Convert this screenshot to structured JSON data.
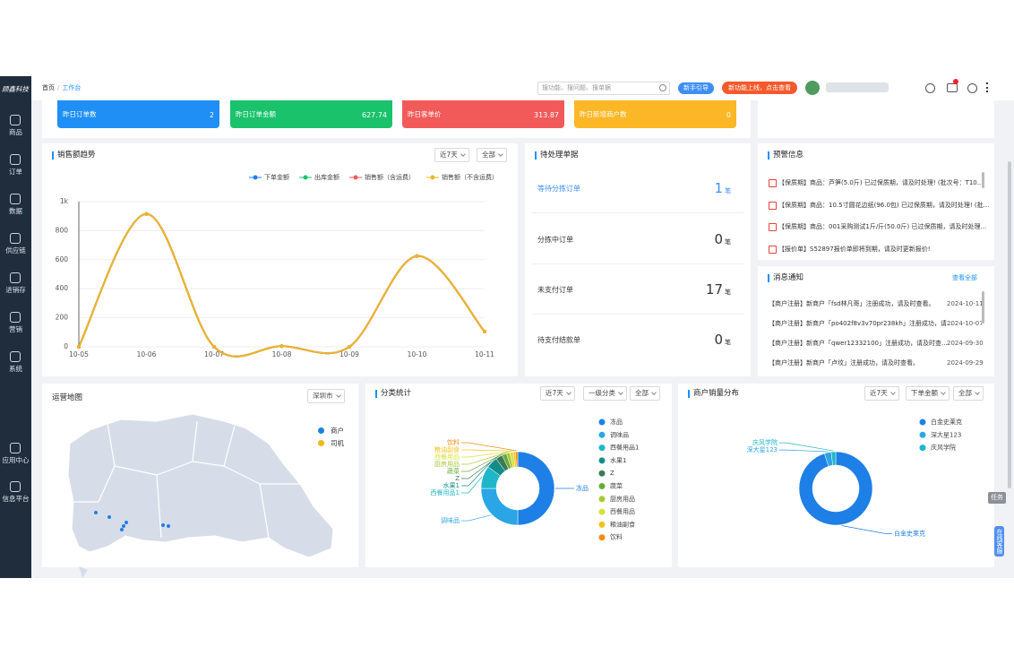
{
  "sidebar": {
    "logo": "顾鑫科技",
    "menu": [
      "商品",
      "订单",
      "数据",
      "供应链",
      "进销存",
      "营销",
      "系统"
    ],
    "bottom_menu": [
      "应用中心",
      "信息平台"
    ]
  },
  "header": {
    "breadcrumb": [
      "首页",
      "工作台"
    ],
    "search_placeholder": "搜功能、搜问题、搜单据",
    "guide_button": "新手引导",
    "new_feature": "新功能上线，点击查看"
  },
  "stat_cards": [
    {
      "label": "昨日订单数",
      "value": 2
    },
    {
      "label": "昨日订单金额",
      "value": 627.74
    },
    {
      "label": "昨日客单价",
      "value": 313.87
    },
    {
      "label": "昨日新增商户数",
      "value": 0
    }
  ],
  "pending": {
    "title": "待处理单据",
    "unit": "笔",
    "rows": [
      {
        "label": "等待分拣订单",
        "count": 1
      },
      {
        "label": "分拣中订单",
        "count": 0
      },
      {
        "label": "未支付订单",
        "count": 17
      },
      {
        "label": "待支付结款单",
        "count": 0
      }
    ]
  },
  "warnings": {
    "title": "预警信息",
    "items": [
      "【保质期】商品：芦笋(5.0斤) 已过保质期，请及时处理! (批次号：T10...",
      "【保质期】商品：10.5寸圆花边纸(96.0包) 已过保质期，请及时处理! (批...",
      "【保质期】商品：001采购测试1斤/斤(50.0斤) 已过保质期，请及时处理...",
      "【报价单】S52897报价单即将到期，请及时更新报价!"
    ]
  },
  "messages": {
    "title": "消息通知",
    "view_all": "查看全部",
    "items": [
      {
        "text": "【商户注册】新商户「fsd林凡哥」注册成功，请及时查看。",
        "date": "2024-10-11"
      },
      {
        "text": "【商户注册】新商户「po402f8v3v70pr238kh」注册成功，请...",
        "date": "2024-10-07"
      },
      {
        "text": "【商户注册】新商户「qwer12332100」注册成功，请及时查...",
        "date": "2024-09-30"
      },
      {
        "text": "【商户注册】新商户「卢坟」注册成功，请及时查看。",
        "date": "2024-09-29"
      }
    ]
  },
  "map": {
    "title": "运营地图",
    "city": "深圳市",
    "legend": [
      {
        "name": "商户",
        "color": "#1e7fe6"
      },
      {
        "name": "司机",
        "color": "#f0b90b"
      }
    ]
  },
  "float": {
    "task": "任务",
    "service": "在线客服"
  },
  "chart_data": [
    {
      "type": "line",
      "title": "销售额趋势",
      "filters": [
        "近7天",
        "全部"
      ],
      "categories": [
        "10-05",
        "10-06",
        "10-07",
        "10-08",
        "10-09",
        "10-10",
        "10-11"
      ],
      "series": [
        {
          "name": "下单金额",
          "color": "#1e7fe6",
          "values": [
            0,
            915,
            0,
            5,
            0,
            625,
            105
          ]
        },
        {
          "name": "出库金额",
          "color": "#19c26b",
          "values": [
            0,
            915,
            0,
            5,
            0,
            625,
            105
          ]
        },
        {
          "name": "销售额（含运费）",
          "color": "#f25a5a",
          "values": [
            0,
            915,
            0,
            5,
            0,
            625,
            105
          ]
        },
        {
          "name": "销售额（不含运费）",
          "color": "#f0b429",
          "values": [
            0,
            915,
            0,
            5,
            0,
            625,
            105
          ]
        }
      ],
      "ylim": [
        0,
        1000
      ],
      "yticks": [
        0,
        200,
        400,
        600,
        800,
        {
          "value": 1000,
          "label": "1k"
        }
      ],
      "grid": true
    },
    {
      "type": "pie",
      "title": "分类统计",
      "filters": [
        "近7天",
        "一级分类",
        "全部"
      ],
      "categories": [
        "冻品",
        "调味品",
        "西餐用品1",
        "水果1",
        "Z",
        "蔬菜",
        "厨房用品",
        "西餐用品",
        "粮油副食",
        "饮料"
      ],
      "values": [
        50,
        25,
        10,
        5,
        3,
        2,
        1.5,
        1.5,
        1,
        1
      ],
      "colors": [
        "#1e7fe6",
        "#2aa5e6",
        "#20b6c9",
        "#138d8a",
        "#3b7a57",
        "#6aaa3c",
        "#a8c832",
        "#d8e03a",
        "#f3c21a",
        "#f08c12"
      ]
    },
    {
      "type": "pie",
      "title": "商户销量分布",
      "filters": [
        "近7天",
        "下单金额",
        "全部"
      ],
      "categories": [
        "白金史莱克",
        "深大星123",
        "庆风学院"
      ],
      "values": [
        95,
        3,
        2
      ],
      "colors": [
        "#1e7fe6",
        "#2aa5e6",
        "#20b6c9"
      ]
    }
  ]
}
